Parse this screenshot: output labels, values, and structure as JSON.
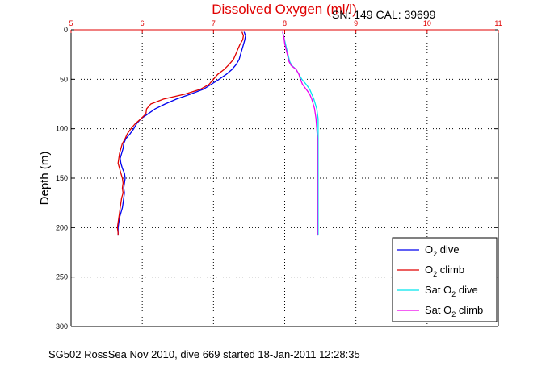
{
  "chart_data": {
    "type": "line",
    "title": "Dissolved Oxygen (ml/l)",
    "annotation": "SN: 149  CAL: 39699",
    "footer": "SG502 RossSea Nov 2010, dive 669 started 18-Jan-2011 12:28:35",
    "xlabel": "Dissolved Oxygen (ml/l)",
    "ylabel": "Depth (m)",
    "xlim": [
      5,
      11
    ],
    "ylim": [
      0,
      300
    ],
    "y_reversed": true,
    "x_ticks": [
      5,
      6,
      7,
      8,
      9,
      10,
      11
    ],
    "y_ticks": [
      0,
      50,
      100,
      150,
      200,
      250,
      300
    ],
    "grid": true,
    "legend_position": "lower-right",
    "colors": {
      "title": "#e00000",
      "top_axis": "#e00000",
      "grid": "#000000"
    },
    "series": [
      {
        "name": "O2 dive",
        "label_parts": [
          "O",
          "2",
          " dive"
        ],
        "color": "#0000ee",
        "points": [
          [
            7.43,
            2
          ],
          [
            7.45,
            6
          ],
          [
            7.44,
            10
          ],
          [
            7.42,
            15
          ],
          [
            7.4,
            20
          ],
          [
            7.38,
            25
          ],
          [
            7.36,
            30
          ],
          [
            7.32,
            35
          ],
          [
            7.26,
            40
          ],
          [
            7.18,
            45
          ],
          [
            7.08,
            50
          ],
          [
            6.97,
            55
          ],
          [
            6.86,
            60
          ],
          [
            6.68,
            65
          ],
          [
            6.48,
            70
          ],
          [
            6.32,
            75
          ],
          [
            6.18,
            80
          ],
          [
            6.08,
            85
          ],
          [
            5.98,
            90
          ],
          [
            5.92,
            95
          ],
          [
            5.88,
            100
          ],
          [
            5.83,
            105
          ],
          [
            5.77,
            110
          ],
          [
            5.74,
            115
          ],
          [
            5.73,
            120
          ],
          [
            5.71,
            125
          ],
          [
            5.69,
            130
          ],
          [
            5.7,
            135
          ],
          [
            5.72,
            140
          ],
          [
            5.75,
            145
          ],
          [
            5.76,
            150
          ],
          [
            5.75,
            155
          ],
          [
            5.74,
            160
          ],
          [
            5.75,
            165
          ],
          [
            5.74,
            170
          ],
          [
            5.73,
            175
          ],
          [
            5.72,
            180
          ],
          [
            5.7,
            185
          ],
          [
            5.68,
            190
          ],
          [
            5.67,
            195
          ],
          [
            5.66,
            200
          ],
          [
            5.66,
            205
          ],
          [
            5.66,
            208
          ]
        ]
      },
      {
        "name": "O2 climb",
        "label_parts": [
          "O",
          "2",
          " climb"
        ],
        "color": "#e00000",
        "points": [
          [
            7.4,
            2
          ],
          [
            7.42,
            6
          ],
          [
            7.41,
            10
          ],
          [
            7.37,
            15
          ],
          [
            7.34,
            20
          ],
          [
            7.31,
            25
          ],
          [
            7.28,
            30
          ],
          [
            7.22,
            35
          ],
          [
            7.15,
            40
          ],
          [
            7.06,
            45
          ],
          [
            7.0,
            50
          ],
          [
            6.94,
            55
          ],
          [
            6.82,
            60
          ],
          [
            6.6,
            65
          ],
          [
            6.3,
            70
          ],
          [
            6.12,
            75
          ],
          [
            6.06,
            80
          ],
          [
            6.05,
            85
          ],
          [
            5.98,
            90
          ],
          [
            5.9,
            95
          ],
          [
            5.84,
            100
          ],
          [
            5.79,
            105
          ],
          [
            5.76,
            110
          ],
          [
            5.72,
            115
          ],
          [
            5.7,
            120
          ],
          [
            5.68,
            125
          ],
          [
            5.67,
            130
          ],
          [
            5.66,
            135
          ],
          [
            5.68,
            140
          ],
          [
            5.7,
            145
          ],
          [
            5.72,
            150
          ],
          [
            5.73,
            155
          ],
          [
            5.72,
            160
          ],
          [
            5.73,
            165
          ],
          [
            5.71,
            170
          ],
          [
            5.7,
            175
          ],
          [
            5.69,
            180
          ],
          [
            5.68,
            185
          ],
          [
            5.67,
            190
          ],
          [
            5.66,
            195
          ],
          [
            5.65,
            200
          ],
          [
            5.66,
            205
          ],
          [
            5.66,
            208
          ]
        ]
      },
      {
        "name": "Sat O2 dive",
        "label_parts": [
          "Sat O",
          "2",
          " dive"
        ],
        "color": "#00e5ee",
        "points": [
          [
            7.97,
            2
          ],
          [
            7.99,
            8
          ],
          [
            8.01,
            14
          ],
          [
            8.03,
            20
          ],
          [
            8.05,
            26
          ],
          [
            8.07,
            32
          ],
          [
            8.1,
            36
          ],
          [
            8.16,
            40
          ],
          [
            8.2,
            45
          ],
          [
            8.24,
            50
          ],
          [
            8.3,
            55
          ],
          [
            8.35,
            60
          ],
          [
            8.38,
            65
          ],
          [
            8.41,
            70
          ],
          [
            8.43,
            75
          ],
          [
            8.45,
            80
          ],
          [
            8.46,
            85
          ],
          [
            8.47,
            90
          ],
          [
            8.47,
            100
          ],
          [
            8.47,
            110
          ],
          [
            8.47,
            120
          ],
          [
            8.47,
            130
          ],
          [
            8.47,
            140
          ],
          [
            8.47,
            150
          ],
          [
            8.47,
            160
          ],
          [
            8.47,
            170
          ],
          [
            8.47,
            180
          ],
          [
            8.47,
            190
          ],
          [
            8.47,
            200
          ],
          [
            8.47,
            208
          ]
        ]
      },
      {
        "name": "Sat O2 climb",
        "label_parts": [
          "Sat O",
          "2",
          " climb"
        ],
        "color": "#ee00ee",
        "points": [
          [
            7.97,
            2
          ],
          [
            7.99,
            8
          ],
          [
            8.0,
            14
          ],
          [
            8.02,
            20
          ],
          [
            8.04,
            26
          ],
          [
            8.06,
            32
          ],
          [
            8.09,
            36
          ],
          [
            8.16,
            40
          ],
          [
            8.2,
            45
          ],
          [
            8.22,
            50
          ],
          [
            8.25,
            55
          ],
          [
            8.3,
            60
          ],
          [
            8.35,
            65
          ],
          [
            8.38,
            70
          ],
          [
            8.4,
            75
          ],
          [
            8.42,
            80
          ],
          [
            8.43,
            85
          ],
          [
            8.44,
            90
          ],
          [
            8.45,
            100
          ],
          [
            8.46,
            110
          ],
          [
            8.46,
            120
          ],
          [
            8.46,
            130
          ],
          [
            8.46,
            140
          ],
          [
            8.46,
            150
          ],
          [
            8.46,
            160
          ],
          [
            8.46,
            170
          ],
          [
            8.46,
            180
          ],
          [
            8.46,
            190
          ],
          [
            8.46,
            200
          ],
          [
            8.46,
            208
          ]
        ]
      }
    ]
  }
}
